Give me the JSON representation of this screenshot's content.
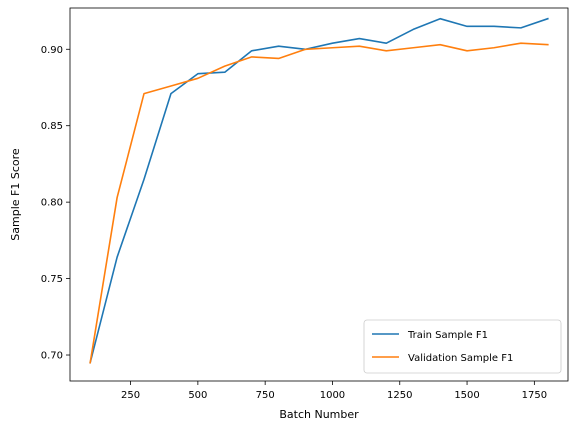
{
  "chart_data": {
    "type": "line",
    "title": "",
    "xlabel": "Batch Number",
    "ylabel": "Sample F1 Score",
    "xlim": [
      25,
      1875
    ],
    "ylim": [
      0.683,
      0.927
    ],
    "xticks": [
      250,
      500,
      750,
      1000,
      1250,
      1500,
      1750
    ],
    "yticks": [
      0.7,
      0.75,
      0.8,
      0.85,
      0.9
    ],
    "ytick_labels": [
      "0.70",
      "0.75",
      "0.80",
      "0.85",
      "0.90"
    ],
    "grid": false,
    "legend_position": "lower-right",
    "x": [
      100,
      200,
      300,
      400,
      500,
      600,
      700,
      800,
      900,
      1000,
      1100,
      1200,
      1300,
      1400,
      1500,
      1600,
      1700,
      1800
    ],
    "series": [
      {
        "name": "Train Sample F1",
        "color": "#1f77b4",
        "values": [
          0.695,
          0.764,
          0.815,
          0.871,
          0.884,
          0.885,
          0.899,
          0.902,
          0.9,
          0.904,
          0.907,
          0.904,
          0.913,
          0.92,
          0.915,
          0.915,
          0.914,
          0.92
        ]
      },
      {
        "name": "Validation Sample F1",
        "color": "#ff7f0e",
        "values": [
          0.695,
          0.803,
          0.871,
          0.876,
          0.881,
          0.889,
          0.895,
          0.894,
          0.9,
          0.901,
          0.902,
          0.899,
          0.901,
          0.903,
          0.899,
          0.901,
          0.904,
          0.903
        ]
      }
    ]
  }
}
